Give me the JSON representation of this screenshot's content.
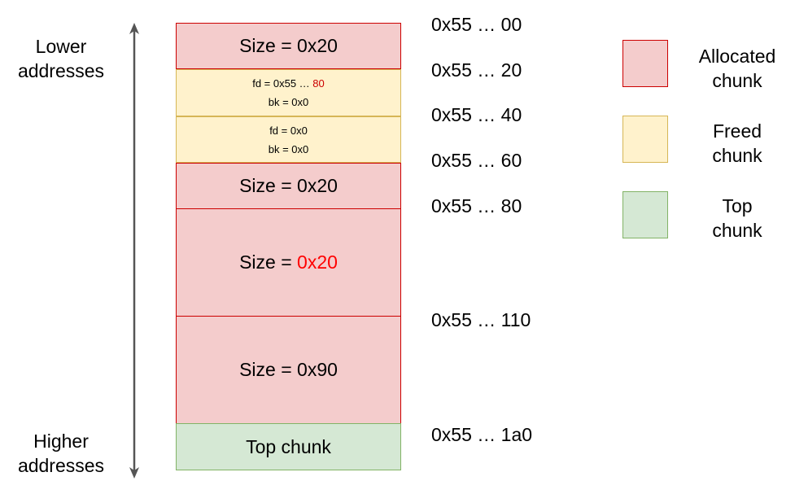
{
  "left_labels": {
    "lower": [
      "Lower",
      "addresses"
    ],
    "higher": [
      "Higher",
      "addresses"
    ]
  },
  "chunks": [
    {
      "type": "allocated",
      "text": "Size = 0x20"
    },
    {
      "type": "freed",
      "line1_prefix": "fd = 0x55 … ",
      "line1_highlight": "80",
      "line2": "bk = 0x0"
    },
    {
      "type": "freed",
      "line1": "fd = 0x0",
      "line2": "bk = 0x0"
    },
    {
      "type": "allocated",
      "text": "Size = 0x20"
    },
    {
      "type": "allocated",
      "prefix": "Size = ",
      "highlight": "0x20"
    },
    {
      "type": "allocated",
      "text": "Size = 0x90"
    },
    {
      "type": "top",
      "text": "Top chunk"
    }
  ],
  "addresses": [
    "0x55 … 00",
    "0x55 … 20",
    "0x55 … 40",
    "0x55 … 60",
    "0x55 … 80",
    "0x55 … 110",
    "0x55 … 1a0"
  ],
  "legend": [
    {
      "lines": [
        "Allocated",
        "chunk"
      ],
      "fill": "#f4cccc",
      "stroke": "#cc0000"
    },
    {
      "lines": [
        "Freed",
        "chunk"
      ],
      "fill": "#fff2cc",
      "stroke": "#d6b656"
    },
    {
      "lines": [
        "Top",
        "chunk"
      ],
      "fill": "#d5e8d4",
      "stroke": "#82b366"
    }
  ],
  "colors": {
    "highlight_red": "#ff0000",
    "highlight_darkred": "#cc0000",
    "arrow": "#555555"
  }
}
